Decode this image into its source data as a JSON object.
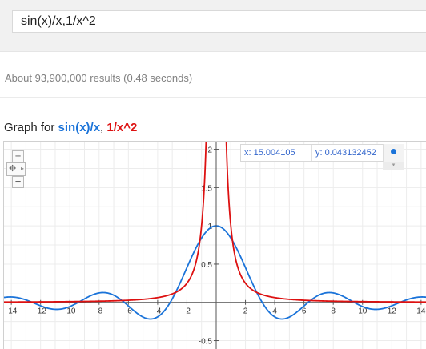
{
  "search": {
    "query": "sin(x)/x,1/x^2"
  },
  "results": {
    "stats": "About 93,900,000 results (0.48 seconds)"
  },
  "graph": {
    "title_prefix": "Graph for ",
    "function1": "sin(x)/x",
    "separator": ", ",
    "function2": "1/x^2",
    "readout_x": "x: 15.004105",
    "readout_y": "y: 0.043132452",
    "zoom_in": "+",
    "zoom_out": "−",
    "pan": "✥"
  },
  "colors": {
    "function1": "#1a73d9",
    "function2": "#dd1111",
    "axis": "#555555"
  },
  "icons": [
    "zoom-in-icon",
    "zoom-out-icon",
    "pan-icon",
    "trace-dot-icon",
    "chevron-down-icon"
  ],
  "chart_data": {
    "type": "line",
    "series": [
      {
        "name": "sin(x)/x",
        "color": "#1a73d9",
        "expression": "sin(x)/x"
      },
      {
        "name": "1/x^2",
        "color": "#dd1111",
        "expression": "1/x^2"
      }
    ],
    "xlim": [
      -14.5,
      14.5
    ],
    "ylim": [
      -0.62,
      2.1
    ],
    "x_ticks": [
      -14,
      -12,
      -10,
      -8,
      -6,
      -4,
      -2,
      2,
      4,
      6,
      8,
      10,
      12,
      14
    ],
    "y_ticks": [
      -0.5,
      0.5,
      1,
      1.5,
      2
    ],
    "y_tick_labels": [
      "-0.5",
      "0.5",
      "1",
      "1.5",
      "2"
    ],
    "grid": true
  }
}
